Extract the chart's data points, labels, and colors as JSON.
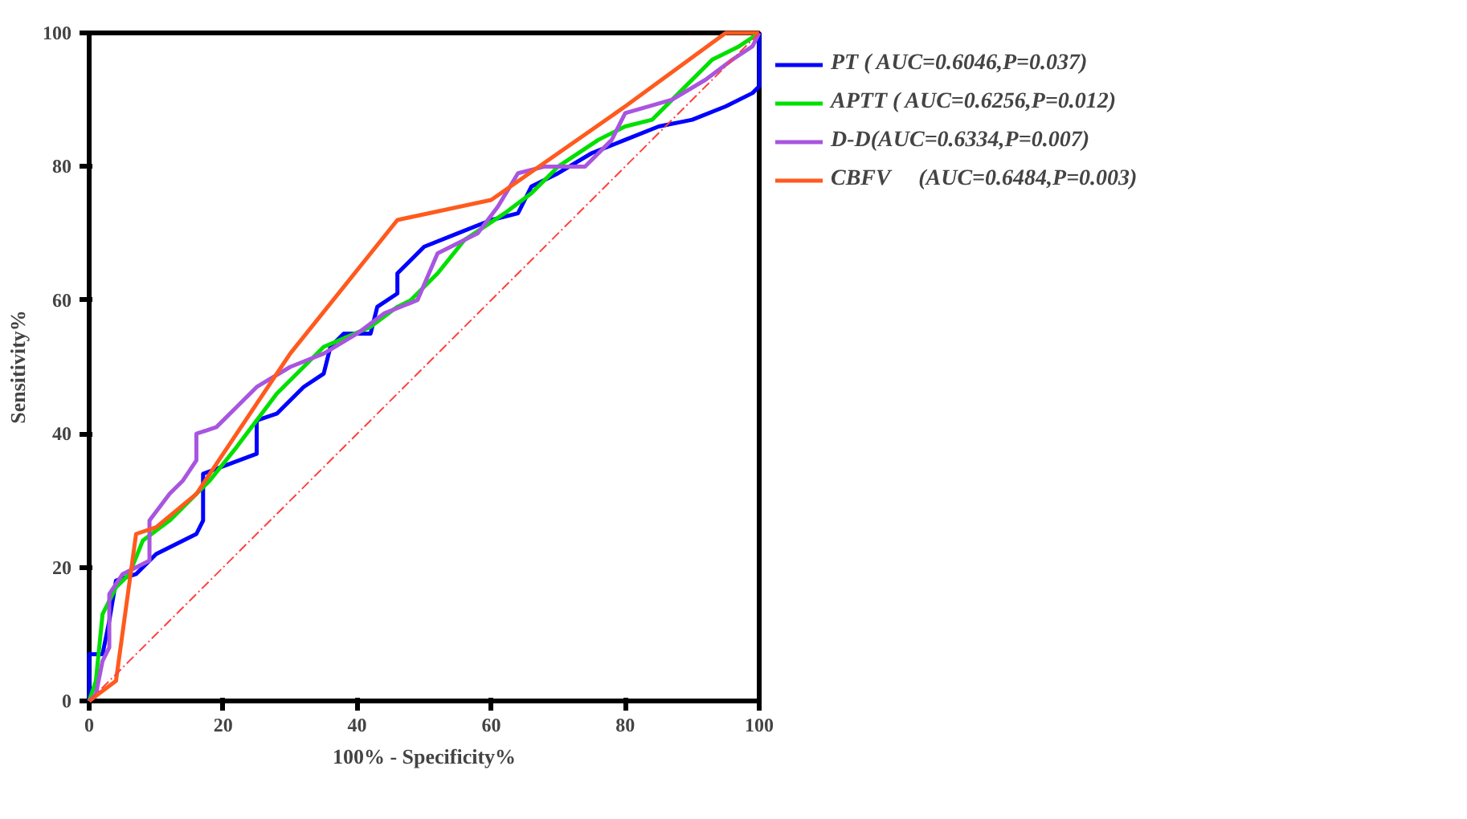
{
  "chart_data": {
    "type": "line",
    "xlabel": "100% - Specificity%",
    "ylabel": "Sensitivity%",
    "xlim": [
      0,
      100
    ],
    "ylim": [
      0,
      100
    ],
    "xticks": [
      0,
      20,
      40,
      60,
      80,
      100
    ],
    "yticks": [
      0,
      20,
      40,
      60,
      80,
      100
    ],
    "grid": false,
    "legend": "right",
    "marker": "none",
    "series": [
      {
        "name": "PT ( AUC=0.6046,P=0.037)",
        "color": "#0000ff",
        "line_style": "solid",
        "x": [
          0,
          0,
          2,
          3,
          4,
          7,
          10,
          16,
          17,
          17,
          25,
          25,
          28,
          32,
          35,
          36,
          38,
          42,
          43,
          46,
          46,
          50,
          55,
          60,
          64,
          66,
          70,
          75,
          80,
          85,
          90,
          95,
          99,
          100,
          100
        ],
        "values": [
          0,
          7,
          7,
          12,
          18,
          19,
          22,
          25,
          27,
          34,
          37,
          42,
          43,
          47,
          49,
          53,
          55,
          55,
          59,
          61,
          64,
          68,
          70,
          72,
          73,
          77,
          79,
          82,
          84,
          86,
          87,
          89,
          91,
          92,
          100
        ]
      },
      {
        "name": "APTT ( AUC=0.6256,P=0.012)",
        "color": "#00e000",
        "line_style": "solid",
        "x": [
          0,
          1,
          2,
          4,
          6,
          8,
          12,
          18,
          22,
          28,
          35,
          42,
          46,
          48,
          52,
          56,
          62,
          66,
          70,
          76,
          80,
          84,
          88,
          93,
          97,
          100
        ],
        "values": [
          0,
          3,
          13,
          17,
          19,
          24,
          27,
          33,
          38,
          46,
          53,
          56,
          59,
          60,
          64,
          69,
          73,
          76,
          80,
          84,
          86,
          87,
          91,
          96,
          98,
          100
        ]
      },
      {
        "name": "D-D(AUC=0.6334,P=0.007)",
        "color": "#a855e0",
        "line_style": "solid",
        "x": [
          0,
          1,
          2,
          3,
          3,
          5,
          9,
          9,
          12,
          14,
          16,
          16,
          19,
          22,
          25,
          30,
          35,
          40,
          44,
          49,
          52,
          58,
          61,
          64,
          68,
          74,
          78,
          80,
          87,
          92,
          96,
          99,
          100
        ],
        "values": [
          0,
          1,
          6,
          8,
          16,
          19,
          21,
          27,
          31,
          33,
          36,
          40,
          41,
          44,
          47,
          50,
          52,
          55,
          58,
          60,
          67,
          70,
          74,
          79,
          80,
          80,
          84,
          88,
          90,
          93,
          96,
          98,
          100
        ]
      },
      {
        "name": "CBFV     (AUC=0.6484,P=0.003)",
        "color": "#ff5a1e",
        "line_style": "solid",
        "x": [
          0,
          4,
          7,
          10,
          16,
          30,
          46,
          60,
          80,
          95,
          100
        ],
        "values": [
          0,
          3,
          25,
          26,
          31,
          52,
          72,
          75,
          89,
          100,
          100
        ]
      },
      {
        "color": "#ff4040",
        "line_style": "dashed",
        "x": [
          0,
          100
        ],
        "values": [
          0,
          100
        ]
      }
    ]
  }
}
